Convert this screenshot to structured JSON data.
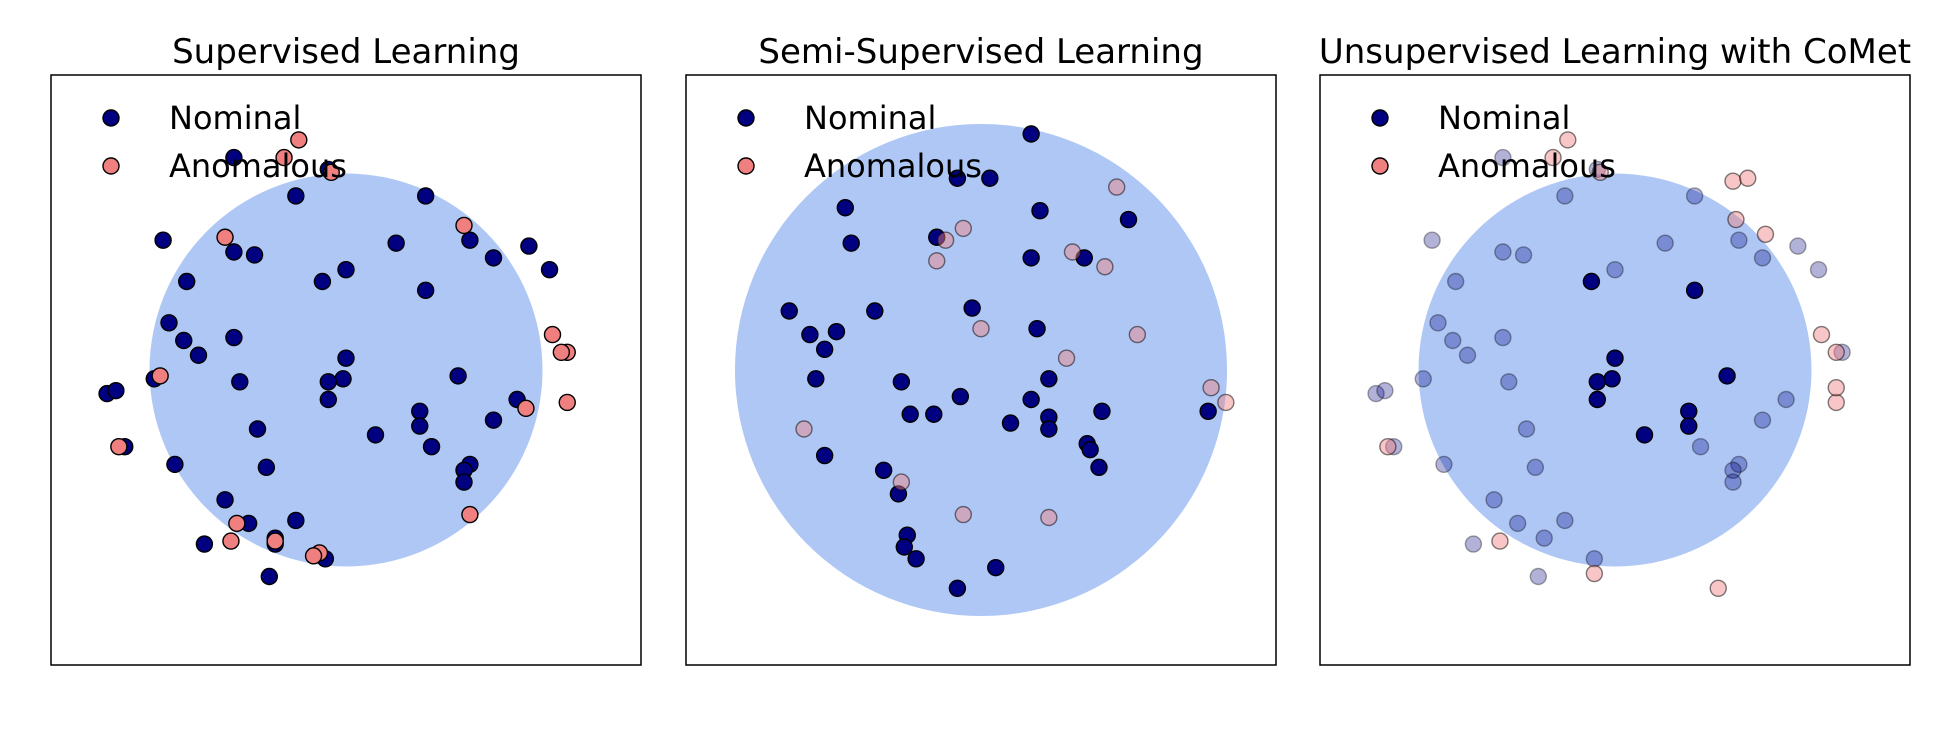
{
  "chart_data": [
    {
      "type": "scatter",
      "title": "Supervised Learning",
      "xlim": [
        0,
        10
      ],
      "ylim": [
        0,
        10
      ],
      "legend": [
        {
          "label": "Nominal",
          "color": "#000080"
        },
        {
          "label": "Anomalous",
          "color": "#f08080"
        }
      ],
      "circle": {
        "cx": 5.0,
        "cy": 5.0,
        "r": 3.33,
        "color": "#aec7f5"
      },
      "series": [
        {
          "name": "Nominal",
          "color": "#000080",
          "opacity": 1.0,
          "points": [
            [
              3.1,
              8.6
            ],
            [
              4.7,
              8.4
            ],
            [
              4.15,
              7.95
            ],
            [
              1.9,
              7.2
            ],
            [
              3.1,
              7.0
            ],
            [
              3.45,
              6.95
            ],
            [
              5.0,
              6.7
            ],
            [
              4.6,
              6.5
            ],
            [
              6.35,
              7.95
            ],
            [
              5.85,
              7.15
            ],
            [
              6.35,
              6.35
            ],
            [
              7.1,
              7.2
            ],
            [
              7.5,
              6.9
            ],
            [
              8.1,
              7.1
            ],
            [
              8.45,
              6.7
            ],
            [
              2.3,
              6.5
            ],
            [
              2.0,
              5.8
            ],
            [
              2.25,
              5.5
            ],
            [
              3.1,
              5.55
            ],
            [
              2.5,
              5.25
            ],
            [
              1.75,
              4.85
            ],
            [
              5.0,
              5.2
            ],
            [
              4.95,
              4.85
            ],
            [
              4.7,
              4.8
            ],
            [
              3.2,
              4.8
            ],
            [
              4.7,
              4.5
            ],
            [
              6.9,
              4.9
            ],
            [
              0.95,
              4.6
            ],
            [
              1.1,
              4.65
            ],
            [
              6.25,
              4.3
            ],
            [
              6.25,
              4.05
            ],
            [
              7.5,
              4.15
            ],
            [
              7.9,
              4.5
            ],
            [
              3.5,
              4.0
            ],
            [
              5.5,
              3.9
            ],
            [
              6.45,
              3.7
            ],
            [
              2.1,
              3.4
            ],
            [
              3.65,
              3.35
            ],
            [
              7.1,
              3.4
            ],
            [
              7.0,
              3.3
            ],
            [
              7.0,
              3.1
            ],
            [
              2.95,
              2.8
            ],
            [
              3.35,
              2.4
            ],
            [
              4.15,
              2.45
            ],
            [
              3.8,
              2.15
            ],
            [
              3.8,
              2.05
            ],
            [
              2.6,
              2.05
            ],
            [
              4.65,
              1.8
            ],
            [
              1.25,
              3.7
            ],
            [
              3.7,
              1.5
            ]
          ]
        },
        {
          "name": "Anomalous",
          "color": "#f08080",
          "opacity": 1.0,
          "points": [
            [
              4.2,
              8.9
            ],
            [
              3.95,
              8.6
            ],
            [
              4.75,
              8.35
            ],
            [
              2.95,
              7.25
            ],
            [
              7.0,
              7.45
            ],
            [
              8.5,
              5.6
            ],
            [
              8.75,
              5.3
            ],
            [
              8.65,
              5.3
            ],
            [
              1.85,
              4.9
            ],
            [
              8.75,
              4.45
            ],
            [
              8.05,
              4.35
            ],
            [
              1.15,
              3.7
            ],
            [
              7.1,
              2.55
            ],
            [
              3.15,
              2.4
            ],
            [
              3.8,
              2.1
            ],
            [
              4.55,
              1.9
            ],
            [
              4.45,
              1.85
            ],
            [
              3.05,
              2.1
            ]
          ]
        }
      ]
    },
    {
      "type": "scatter",
      "title": "Semi-Supervised Learning",
      "xlim": [
        0,
        10
      ],
      "ylim": [
        0,
        10
      ],
      "legend": [
        {
          "label": "Nominal",
          "color": "#000080"
        },
        {
          "label": "Anomalous",
          "color": "#f08080"
        }
      ],
      "circle": {
        "cx": 5.0,
        "cy": 5.0,
        "r": 4.17,
        "color": "#aec7f5"
      },
      "series": [
        {
          "name": "Nominal",
          "color": "#000080",
          "opacity": 1.0,
          "points": [
            [
              5.85,
              9.0
            ],
            [
              4.6,
              8.25
            ],
            [
              5.15,
              8.25
            ],
            [
              2.7,
              7.75
            ],
            [
              2.8,
              7.15
            ],
            [
              4.25,
              7.25
            ],
            [
              6.0,
              7.7
            ],
            [
              5.85,
              6.9
            ],
            [
              6.75,
              6.9
            ],
            [
              7.5,
              7.55
            ],
            [
              4.85,
              6.05
            ],
            [
              1.75,
              6.0
            ],
            [
              2.1,
              5.6
            ],
            [
              2.35,
              5.35
            ],
            [
              2.55,
              5.65
            ],
            [
              3.2,
              6.0
            ],
            [
              5.95,
              5.7
            ],
            [
              2.2,
              4.85
            ],
            [
              6.15,
              4.85
            ],
            [
              3.65,
              4.8
            ],
            [
              3.8,
              4.25
            ],
            [
              4.2,
              4.25
            ],
            [
              4.65,
              4.55
            ],
            [
              5.85,
              4.5
            ],
            [
              6.15,
              4.2
            ],
            [
              6.15,
              4.0
            ],
            [
              7.05,
              4.3
            ],
            [
              5.5,
              4.1
            ],
            [
              6.8,
              3.75
            ],
            [
              6.85,
              3.65
            ],
            [
              7.0,
              3.35
            ],
            [
              2.35,
              3.55
            ],
            [
              3.35,
              3.3
            ],
            [
              3.6,
              2.9
            ],
            [
              8.85,
              4.3
            ],
            [
              3.75,
              2.2
            ],
            [
              3.7,
              2.0
            ],
            [
              3.9,
              1.8
            ],
            [
              4.6,
              1.3
            ],
            [
              5.25,
              1.65
            ]
          ]
        },
        {
          "name": "Anomalous",
          "color": "#f08080",
          "opacity": 0.45,
          "points": [
            [
              7.3,
              8.1
            ],
            [
              4.7,
              7.4
            ],
            [
              4.25,
              6.85
            ],
            [
              4.4,
              7.2
            ],
            [
              6.55,
              7.0
            ],
            [
              7.1,
              6.75
            ],
            [
              5.0,
              5.7
            ],
            [
              7.65,
              5.6
            ],
            [
              6.45,
              5.2
            ],
            [
              8.9,
              4.7
            ],
            [
              9.15,
              4.45
            ],
            [
              2.0,
              4.0
            ],
            [
              3.65,
              3.1
            ],
            [
              4.7,
              2.55
            ],
            [
              6.15,
              2.5
            ]
          ]
        }
      ]
    },
    {
      "type": "scatter",
      "title": "Unsupervised Learning with CoMet",
      "xlim": [
        0,
        10
      ],
      "ylim": [
        0,
        10
      ],
      "legend": [
        {
          "label": "Nominal",
          "color": "#000080"
        },
        {
          "label": "Anomalous",
          "color": "#f08080"
        }
      ],
      "circle": {
        "cx": 5.0,
        "cy": 5.0,
        "r": 3.33,
        "color": "#aec7f5"
      },
      "series": [
        {
          "name": "Nominal",
          "color": "#000080",
          "opacity": 1.0,
          "points": [
            [
              5.0,
              5.2
            ],
            [
              4.95,
              4.85
            ],
            [
              4.7,
              4.8
            ],
            [
              4.7,
              4.5
            ],
            [
              5.5,
              3.9
            ],
            [
              6.25,
              4.3
            ],
            [
              6.25,
              4.05
            ],
            [
              6.9,
              4.9
            ],
            [
              6.35,
              6.35
            ],
            [
              4.6,
              6.5
            ]
          ]
        },
        {
          "name": "Nominal-faded",
          "color": "#000080",
          "opacity": 0.3,
          "points": [
            [
              3.1,
              8.6
            ],
            [
              4.7,
              8.4
            ],
            [
              4.15,
              7.95
            ],
            [
              1.9,
              7.2
            ],
            [
              3.1,
              7.0
            ],
            [
              3.45,
              6.95
            ],
            [
              5.0,
              6.7
            ],
            [
              6.35,
              7.95
            ],
            [
              5.85,
              7.15
            ],
            [
              7.1,
              7.2
            ],
            [
              7.5,
              6.9
            ],
            [
              8.1,
              7.1
            ],
            [
              8.45,
              6.7
            ],
            [
              2.3,
              6.5
            ],
            [
              2.0,
              5.8
            ],
            [
              2.25,
              5.5
            ],
            [
              3.1,
              5.55
            ],
            [
              2.5,
              5.25
            ],
            [
              1.75,
              4.85
            ],
            [
              3.2,
              4.8
            ],
            [
              0.95,
              4.6
            ],
            [
              1.1,
              4.65
            ],
            [
              6.45,
              3.7
            ],
            [
              7.5,
              4.15
            ],
            [
              7.9,
              4.5
            ],
            [
              3.5,
              4.0
            ],
            [
              2.1,
              3.4
            ],
            [
              3.65,
              3.35
            ],
            [
              7.1,
              3.4
            ],
            [
              7.0,
              3.3
            ],
            [
              7.0,
              3.1
            ],
            [
              2.95,
              2.8
            ],
            [
              3.35,
              2.4
            ],
            [
              4.15,
              2.45
            ],
            [
              3.8,
              2.15
            ],
            [
              2.6,
              2.05
            ],
            [
              4.65,
              1.8
            ],
            [
              1.25,
              3.7
            ],
            [
              3.7,
              1.5
            ],
            [
              8.85,
              5.3
            ]
          ]
        },
        {
          "name": "Anomalous",
          "color": "#f08080",
          "opacity": 0.45,
          "points": [
            [
              4.2,
              8.9
            ],
            [
              3.95,
              8.6
            ],
            [
              4.75,
              8.35
            ],
            [
              7.0,
              8.2
            ],
            [
              7.25,
              8.25
            ],
            [
              7.55,
              7.3
            ],
            [
              7.05,
              7.55
            ],
            [
              8.5,
              5.6
            ],
            [
              8.75,
              5.3
            ],
            [
              8.75,
              4.45
            ],
            [
              8.75,
              4.7
            ],
            [
              1.15,
              3.7
            ],
            [
              3.05,
              2.1
            ],
            [
              4.65,
              1.55
            ],
            [
              6.75,
              1.3
            ]
          ]
        }
      ]
    }
  ]
}
